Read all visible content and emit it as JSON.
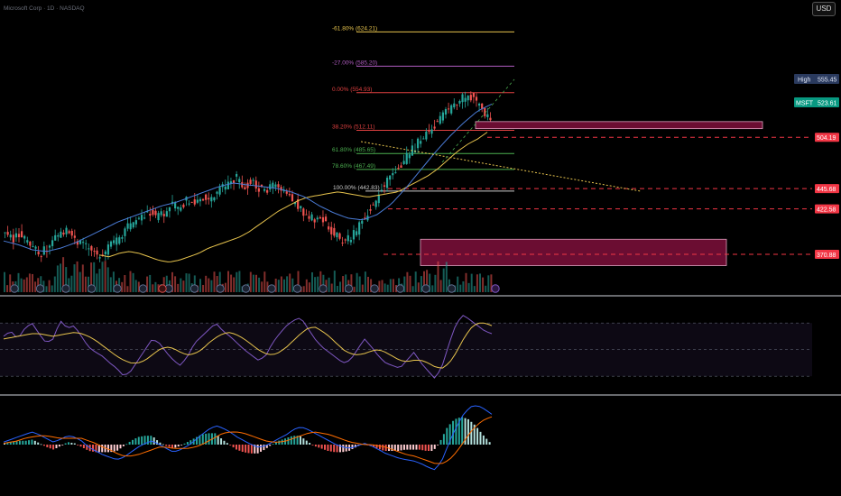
{
  "header": {
    "symbol_line": "Microsoft Corp · 1D · NASDAQ",
    "currency_button": "USD"
  },
  "colors": {
    "bull": "#26a69a",
    "bear": "#ef5350",
    "fib_extension": "#e6c34d",
    "fib_minus27": "#b05cc0",
    "fib_0": "#e04040",
    "fib_green": "#4caf50",
    "fib_100": "#cccccc",
    "zone_fill": "#c2185b",
    "sma": "#e6c34d",
    "ema": "#4a7bd6",
    "rsi": "#7e57c2",
    "macd": "#2962ff",
    "signal": "#ff6d00",
    "price_tag": "#089981",
    "level_tag": "#f23645",
    "high_tag": "#2a3a5e"
  },
  "chart_data": [
    {
      "type": "candlestick",
      "symbol": "MSFT",
      "ylim": [
        340,
        640
      ],
      "fib_levels": [
        {
          "label": "-61.80% (624.21)",
          "price": 624.21
        },
        {
          "label": "-27.00% (585.20)",
          "price": 585.2
        },
        {
          "label": "0.00% (554.93)",
          "price": 554.93
        },
        {
          "label": "38.20% (512.11)",
          "price": 512.11
        },
        {
          "label": "61.80% (485.65)",
          "price": 485.65
        },
        {
          "label": "78.60% (467.49)",
          "price": 467.49
        },
        {
          "label": "100.00% (442.83)",
          "price": 442.83
        }
      ],
      "price_labels": {
        "high_label": "High",
        "high_value": "555.45",
        "symbol": "MSFT",
        "current": "523.61",
        "levels": [
          "504.19",
          "445.68",
          "422.58",
          "370.88"
        ]
      },
      "zones": [
        {
          "name": "resistance",
          "from": 514,
          "to": 522
        },
        {
          "name": "support",
          "from": 358,
          "to": 388
        }
      ],
      "earnings_markers": 18,
      "dividend_markers": 1,
      "close_path": [
        392,
        388,
        395,
        384,
        376,
        372,
        380,
        390,
        398,
        394,
        386,
        380,
        374,
        368,
        376,
        384,
        390,
        402,
        408,
        414,
        420,
        412,
        418,
        428,
        424,
        432,
        428,
        436,
        430,
        440,
        446,
        452,
        458,
        448,
        454,
        446,
        440,
        450,
        444,
        438,
        430,
        420,
        414,
        408,
        410,
        398,
        390,
        385,
        392,
        404,
        418,
        430,
        446,
        456,
        466,
        476,
        488,
        498,
        508,
        516,
        524,
        534,
        540,
        548,
        552,
        546,
        530,
        523
      ],
      "sma_path": [
        370,
        368,
        372,
        374,
        372,
        368,
        364,
        362,
        364,
        368,
        372,
        378,
        382,
        386,
        390,
        396,
        404,
        412,
        420,
        426,
        432,
        436,
        438,
        440,
        442,
        440,
        438,
        436,
        438,
        440,
        442,
        448,
        454,
        460,
        468,
        478,
        488,
        496,
        502,
        510
      ],
      "ema_path": [
        386,
        382,
        376,
        374,
        378,
        384,
        392,
        400,
        408,
        414,
        420,
        426,
        430,
        436,
        442,
        448,
        452,
        450,
        448,
        446,
        442,
        436,
        426,
        418,
        412,
        410,
        416,
        428,
        446,
        466,
        486,
        504,
        520,
        534,
        542
      ]
    },
    {
      "type": "line",
      "name": "RSI",
      "ylim": [
        20,
        85
      ],
      "bands": [
        70,
        50,
        30
      ],
      "values": [
        60,
        64,
        58,
        66,
        70,
        62,
        55,
        58,
        72,
        66,
        68,
        60,
        52,
        48,
        45,
        40,
        36,
        30,
        34,
        42,
        50,
        58,
        55,
        48,
        42,
        38,
        45,
        55,
        60,
        65,
        70,
        64,
        60,
        55,
        50,
        46,
        42,
        45,
        55,
        62,
        68,
        72,
        74,
        66,
        58,
        52,
        48,
        44,
        40,
        42,
        50,
        58,
        52,
        45,
        40,
        38,
        36,
        42,
        48,
        40,
        34,
        28,
        38,
        55,
        70,
        76,
        72,
        68,
        64,
        62
      ],
      "ma_values": [
        58,
        59,
        60,
        61,
        62,
        62,
        61,
        60,
        61,
        62,
        63,
        62,
        60,
        57,
        53,
        49,
        45,
        42,
        40,
        40,
        42,
        46,
        50,
        52,
        51,
        48,
        46,
        47,
        50,
        55,
        59,
        62,
        63,
        61,
        58,
        54,
        50,
        47,
        46,
        48,
        52,
        57,
        62,
        66,
        67,
        64,
        60,
        55,
        50,
        47,
        46,
        47,
        49,
        50,
        48,
        45,
        42,
        41,
        42,
        42,
        40,
        37,
        36,
        40,
        48,
        58,
        66,
        70,
        70,
        68
      ]
    },
    {
      "type": "line",
      "name": "MACD",
      "ylim": [
        -25,
        35
      ],
      "macd": [
        2,
        4,
        6,
        8,
        10,
        8,
        5,
        2,
        4,
        7,
        6,
        3,
        -2,
        -5,
        -8,
        -10,
        -12,
        -10,
        -6,
        -2,
        1,
        3,
        0,
        -3,
        -6,
        -4,
        -1,
        3,
        8,
        12,
        15,
        13,
        10,
        6,
        3,
        0,
        -2,
        -1,
        2,
        5,
        8,
        12,
        14,
        12,
        9,
        6,
        3,
        0,
        -2,
        -3,
        -1,
        1,
        -1,
        -4,
        -7,
        -9,
        -11,
        -12,
        -13,
        -15,
        -18,
        -20,
        -12,
        2,
        14,
        24,
        30,
        31,
        28,
        24
      ],
      "signal": [
        1,
        2,
        3,
        5,
        6,
        7,
        7,
        6,
        5,
        5,
        5,
        5,
        3,
        1,
        -2,
        -4,
        -7,
        -9,
        -9,
        -8,
        -6,
        -4,
        -2,
        -2,
        -3,
        -3,
        -3,
        -2,
        0,
        3,
        6,
        9,
        10,
        10,
        9,
        7,
        5,
        3,
        2,
        2,
        3,
        5,
        7,
        9,
        10,
        9,
        8,
        6,
        4,
        2,
        1,
        0,
        0,
        -1,
        -2,
        -4,
        -6,
        -8,
        -9,
        -11,
        -13,
        -15,
        -15,
        -12,
        -6,
        2,
        10,
        16,
        20,
        22
      ]
    }
  ]
}
